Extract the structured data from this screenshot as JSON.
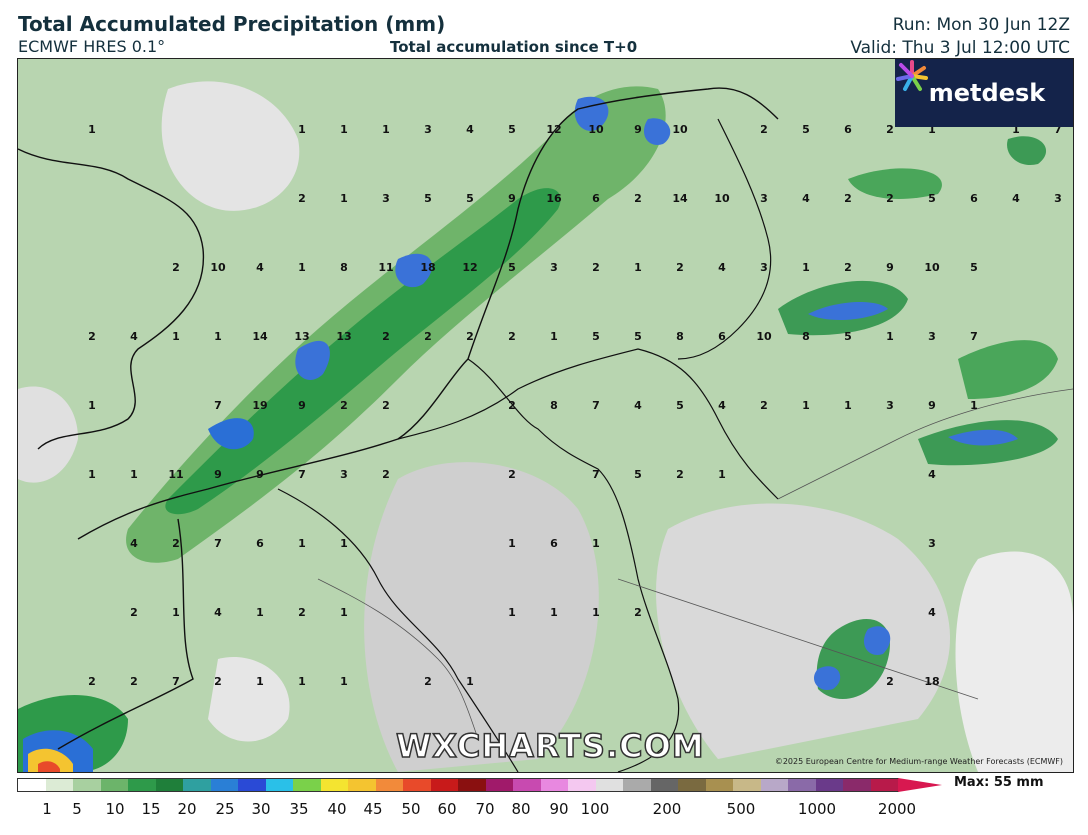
{
  "header": {
    "title": "Total Accumulated Precipitation (mm)",
    "model": "ECMWF HRES 0.1°",
    "subtitle": "Total accumulation since T+0",
    "run": "Run: Mon 30 Jun 12Z",
    "valid": "Valid: Thu 3 Jul 12:00 UTC"
  },
  "logo": {
    "text": "metdesk",
    "icon": "metdesk-logo-icon"
  },
  "watermark": "WXCHARTS.COM",
  "copyright": "©2025 European Centre for Medium-range Weather Forecasts (ECMWF)",
  "legend": {
    "max_label": "Max: 55 mm",
    "ticks": [
      "1",
      "5",
      "10",
      "15",
      "20",
      "25",
      "30",
      "35",
      "40",
      "45",
      "50",
      "60",
      "70",
      "80",
      "90",
      "100",
      "200",
      "500",
      "1000",
      "2000"
    ]
  },
  "grid_values": [
    [
      "1",
      "",
      "",
      "",
      "",
      "1",
      "1",
      "1",
      "3",
      "4",
      "5",
      "12",
      "10",
      "9",
      "10",
      "",
      "2",
      "5",
      "6",
      "2",
      "1",
      "",
      "1",
      "7"
    ],
    [
      "",
      "",
      "",
      "",
      "",
      "2",
      "1",
      "3",
      "5",
      "5",
      "9",
      "16",
      "6",
      "2",
      "14",
      "10",
      "3",
      "4",
      "2",
      "2",
      "5",
      "6",
      "4",
      "3"
    ],
    [
      "",
      "",
      "2",
      "10",
      "4",
      "1",
      "8",
      "11",
      "18",
      "12",
      "5",
      "3",
      "2",
      "1",
      "2",
      "4",
      "3",
      "1",
      "2",
      "9",
      "10",
      "5",
      "",
      ""
    ],
    [
      "2",
      "4",
      "1",
      "1",
      "14",
      "13",
      "13",
      "2",
      "2",
      "2",
      "2",
      "1",
      "5",
      "5",
      "8",
      "6",
      "10",
      "8",
      "5",
      "1",
      "3",
      "7",
      "",
      ""
    ],
    [
      "1",
      "",
      "",
      "7",
      "19",
      "9",
      "2",
      "2",
      "",
      "",
      "2",
      "8",
      "7",
      "4",
      "5",
      "4",
      "2",
      "1",
      "1",
      "3",
      "9",
      "1",
      "",
      ""
    ],
    [
      "1",
      "1",
      "11",
      "9",
      "9",
      "7",
      "3",
      "2",
      "",
      "",
      "2",
      "",
      "7",
      "5",
      "2",
      "1",
      "",
      "",
      "",
      "",
      "4",
      "",
      "",
      ""
    ],
    [
      "",
      "4",
      "2",
      "7",
      "6",
      "1",
      "1",
      "",
      "",
      "",
      "1",
      "6",
      "1",
      "",
      "",
      "",
      "",
      "",
      "",
      "",
      "3",
      "",
      "",
      ""
    ],
    [
      "",
      "2",
      "1",
      "4",
      "1",
      "2",
      "1",
      "",
      "",
      "",
      "1",
      "1",
      "1",
      "2",
      "",
      "",
      "",
      "",
      "",
      "",
      "4",
      "",
      "",
      ""
    ],
    [
      "2",
      "2",
      "7",
      "2",
      "1",
      "1",
      "1",
      "",
      "2",
      "1",
      "",
      "",
      "",
      "",
      "",
      "",
      "",
      "",
      "",
      "2",
      "18",
      "",
      "",
      ""
    ]
  ]
}
